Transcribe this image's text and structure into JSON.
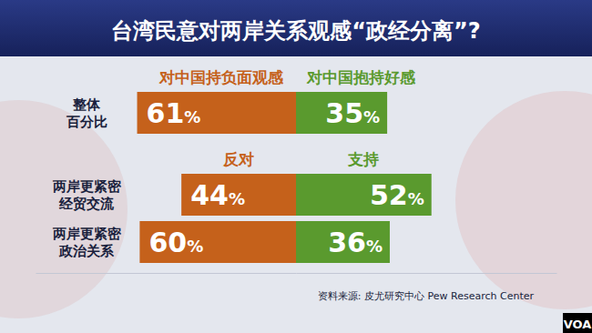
{
  "chart_data": {
    "type": "bar",
    "orientation": "horizontal",
    "title": "台湾民意对两岸关系观感“政经分离”?",
    "categories": [
      "整体\n百分比",
      "两岸更紧密\n经贸交流",
      "两岸更紧密\n政治关系"
    ],
    "series": [
      {
        "name": "对中国持负面观感",
        "color": "#c5611b",
        "values": [
          61,
          44,
          60
        ],
        "value_labels": [
          "61%",
          "44%",
          "60%"
        ]
      },
      {
        "name": "对中国抱持好感",
        "color": "#5a9a2e",
        "values": [
          35,
          52,
          36
        ],
        "value_labels": [
          "35%",
          "52%",
          "36%"
        ]
      }
    ],
    "annotations": [
      "反对",
      "支持"
    ],
    "source": "资料来源: 皮尤研究中心 Pew Research Center",
    "logo": "VOA",
    "xlim": [
      0,
      100
    ],
    "data_labels": true,
    "tick_labels": false
  }
}
